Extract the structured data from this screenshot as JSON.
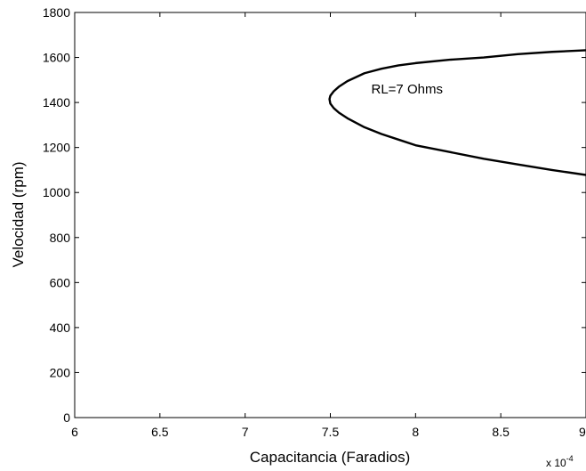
{
  "chart_data": {
    "type": "line",
    "title": "",
    "xlabel": "Capacitancia (Faradios)",
    "ylabel": "Velocidad (rpm)",
    "x_multiplier_label": "x 10",
    "x_multiplier_exponent": "-4",
    "xlim": [
      6,
      9
    ],
    "ylim": [
      0,
      1800
    ],
    "xticks": [
      6,
      6.5,
      7,
      7.5,
      8,
      8.5,
      9
    ],
    "xtick_labels": [
      "6",
      "6.5",
      "7",
      "7.5",
      "8",
      "8.5",
      "9"
    ],
    "yticks": [
      0,
      200,
      400,
      600,
      800,
      1000,
      1200,
      1400,
      1600,
      1800
    ],
    "ytick_labels": [
      "0",
      "200",
      "400",
      "600",
      "800",
      "1000",
      "1200",
      "1400",
      "1600",
      "1800"
    ],
    "grid": false,
    "line_color": "#000000",
    "annotations": [
      {
        "text": "RL=7 Ohms",
        "x": 7.74,
        "y": 1460
      }
    ],
    "series": [
      {
        "name": "RL=7 Ohms",
        "x": [
          9.0,
          8.8,
          8.6,
          8.4,
          8.2,
          8.0,
          7.9,
          7.8,
          7.7,
          7.6,
          7.55,
          7.52,
          7.5,
          7.495,
          7.5,
          7.52,
          7.55,
          7.6,
          7.7,
          7.8,
          7.9,
          8.0,
          8.2,
          8.4,
          8.6,
          8.8,
          9.0
        ],
        "y": [
          1632,
          1625,
          1615,
          1600,
          1590,
          1575,
          1565,
          1550,
          1530,
          1495,
          1470,
          1450,
          1430,
          1415,
          1395,
          1375,
          1355,
          1330,
          1290,
          1260,
          1235,
          1210,
          1180,
          1150,
          1125,
          1100,
          1078
        ]
      }
    ]
  }
}
